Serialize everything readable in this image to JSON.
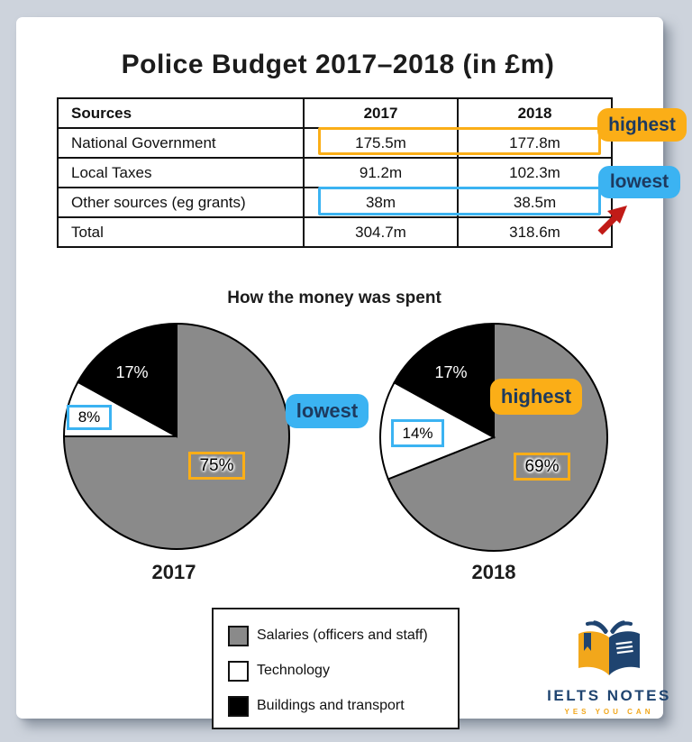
{
  "theme": {
    "background": "#CDD3DC",
    "highlight_orange": "#FBAE17",
    "highlight_blue": "#3BB3F2",
    "badge_text": "#1D3A5F",
    "arrow_red": "#C11B17",
    "pie_gray": "#8A8A8A",
    "logo_navy": "#1F4470",
    "logo_gold": "#F2A71B"
  },
  "page": {
    "title": "Police Budget 2017–2018 (in £m)"
  },
  "annotations": {
    "highest": "highest",
    "lowest": "lowest"
  },
  "chart_data": [
    {
      "type": "table",
      "title": "Police Budget 2017–2018 (in £m)",
      "columns": [
        "Sources",
        "2017",
        "2018"
      ],
      "rows": [
        [
          "National Government",
          "175.5m",
          "177.8m"
        ],
        [
          "Local Taxes",
          "91.2m",
          "102.3m"
        ],
        [
          "Other sources (eg grants)",
          "38m",
          "38.5m"
        ],
        [
          "Total",
          "304.7m",
          "318.6m"
        ]
      ],
      "highlights": [
        {
          "row": "National Government",
          "note": "highest",
          "color": "#FBAE17"
        },
        {
          "row": "Other sources (eg grants)",
          "note": "lowest",
          "color": "#3BB3F2"
        }
      ]
    },
    {
      "type": "pie",
      "title": "How the money was spent",
      "year_label": "2017",
      "categories": [
        "Salaries (officers and staff)",
        "Technology",
        "Buildings and transport"
      ],
      "values": [
        75,
        8,
        17
      ],
      "labels": [
        "75%",
        "8%",
        "17%"
      ],
      "colors": [
        "#8A8A8A",
        "#FFFFFF",
        "#000000"
      ],
      "legend_position": "bottom"
    },
    {
      "type": "pie",
      "title": "How the money was spent",
      "year_label": "2018",
      "categories": [
        "Salaries (officers and staff)",
        "Technology",
        "Buildings and transport"
      ],
      "values": [
        69,
        14,
        17
      ],
      "labels": [
        "69%",
        "14%",
        "17%"
      ],
      "colors": [
        "#8A8A8A",
        "#FFFFFF",
        "#000000"
      ],
      "legend_position": "bottom",
      "annotations": [
        {
          "slice": "Salaries (officers and staff)",
          "note": "highest"
        },
        {
          "slice": "Technology",
          "note": "lowest"
        }
      ]
    }
  ],
  "legend": {
    "items": [
      {
        "label": "Salaries (officers and staff)",
        "color": "#8A8A8A"
      },
      {
        "label": "Technology",
        "color": "#FFFFFF"
      },
      {
        "label": "Buildings and transport",
        "color": "#000000"
      }
    ]
  },
  "logo": {
    "name": "IELTS NOTES",
    "tagline": "YES YOU CAN"
  }
}
